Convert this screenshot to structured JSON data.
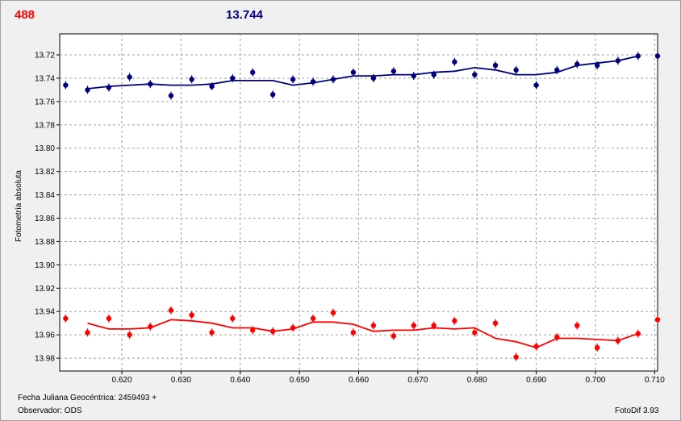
{
  "header": {
    "star_value_left": "488",
    "star_value_mid": "13.744"
  },
  "footer": {
    "jd_label": "Fecha Juliana Geocéntrica: 2459493 +",
    "observer_label": "Observador: ODS",
    "software": "FotoDif 3.93"
  },
  "colors": {
    "series1": "#00007f",
    "series2": "#ff0000",
    "grid": "#a0a0a0"
  },
  "chart_data": {
    "type": "scatter",
    "title": "",
    "xlabel": "Fecha Juliana Geocéntrica: 2459493 +",
    "ylabel": "Fotometría absoluta",
    "xlim": [
      0.6095,
      0.7105
    ],
    "ylim": [
      13.991,
      13.702
    ],
    "y_inverted": true,
    "grid": true,
    "x_ticks": [
      "0.620",
      "0.630",
      "0.640",
      "0.650",
      "0.660",
      "0.670",
      "0.680",
      "0.690",
      "0.700",
      "0.710"
    ],
    "y_ticks": [
      "13.72",
      "13.74",
      "13.76",
      "13.78",
      "13.80",
      "13.82",
      "13.84",
      "13.86",
      "13.88",
      "13.90",
      "13.92",
      "13.94",
      "13.96",
      "13.98"
    ],
    "series": [
      {
        "points": [
          [
            0.6105,
            13.746
          ],
          [
            0.6142,
            13.75
          ],
          [
            0.6178,
            13.748
          ],
          [
            0.6213,
            13.739
          ],
          [
            0.6248,
            13.745
          ],
          [
            0.6283,
            13.755
          ],
          [
            0.6318,
            13.741
          ],
          [
            0.6352,
            13.747
          ],
          [
            0.6387,
            13.74
          ],
          [
            0.6421,
            13.735
          ],
          [
            0.6455,
            13.754
          ],
          [
            0.6489,
            13.741
          ],
          [
            0.6523,
            13.743
          ],
          [
            0.6557,
            13.741
          ],
          [
            0.6591,
            13.735
          ],
          [
            0.6625,
            13.74
          ],
          [
            0.6659,
            13.734
          ],
          [
            0.6693,
            13.738
          ],
          [
            0.6727,
            13.737
          ],
          [
            0.6762,
            13.726
          ],
          [
            0.6796,
            13.737
          ],
          [
            0.6831,
            13.729
          ],
          [
            0.6866,
            13.733
          ],
          [
            0.69,
            13.746
          ],
          [
            0.6935,
            13.733
          ],
          [
            0.6969,
            13.728
          ],
          [
            0.7003,
            13.729
          ],
          [
            0.7038,
            13.725
          ],
          [
            0.7072,
            13.721
          ],
          [
            0.7105,
            13.721
          ]
        ],
        "trend": [
          [
            0.6142,
            13.749
          ],
          [
            0.6178,
            13.747
          ],
          [
            0.6213,
            13.746
          ],
          [
            0.6248,
            13.745
          ],
          [
            0.6283,
            13.746
          ],
          [
            0.6318,
            13.746
          ],
          [
            0.6352,
            13.745
          ],
          [
            0.6387,
            13.742
          ],
          [
            0.6421,
            13.742
          ],
          [
            0.6455,
            13.742
          ],
          [
            0.6489,
            13.746
          ],
          [
            0.6523,
            13.744
          ],
          [
            0.6557,
            13.741
          ],
          [
            0.6591,
            13.738
          ],
          [
            0.6625,
            13.738
          ],
          [
            0.6659,
            13.737
          ],
          [
            0.6693,
            13.737
          ],
          [
            0.6727,
            13.735
          ],
          [
            0.6762,
            13.734
          ],
          [
            0.6796,
            13.731
          ],
          [
            0.6831,
            13.733
          ],
          [
            0.6866,
            13.737
          ],
          [
            0.69,
            13.737
          ],
          [
            0.6935,
            13.735
          ],
          [
            0.6969,
            13.729
          ],
          [
            0.7003,
            13.727
          ],
          [
            0.7038,
            13.725
          ],
          [
            0.7072,
            13.721
          ]
        ]
      },
      {
        "points": [
          [
            0.6105,
            13.946
          ],
          [
            0.6142,
            13.958
          ],
          [
            0.6178,
            13.946
          ],
          [
            0.6213,
            13.96
          ],
          [
            0.6248,
            13.953
          ],
          [
            0.6283,
            13.939
          ],
          [
            0.6318,
            13.943
          ],
          [
            0.6352,
            13.958
          ],
          [
            0.6387,
            13.946
          ],
          [
            0.6421,
            13.956
          ],
          [
            0.6455,
            13.957
          ],
          [
            0.6489,
            13.954
          ],
          [
            0.6523,
            13.946
          ],
          [
            0.6557,
            13.941
          ],
          [
            0.6591,
            13.958
          ],
          [
            0.6625,
            13.952
          ],
          [
            0.6659,
            13.961
          ],
          [
            0.6693,
            13.952
          ],
          [
            0.6727,
            13.952
          ],
          [
            0.6762,
            13.948
          ],
          [
            0.6796,
            13.958
          ],
          [
            0.6831,
            13.95
          ],
          [
            0.6866,
            13.979
          ],
          [
            0.69,
            13.97
          ],
          [
            0.6935,
            13.962
          ],
          [
            0.6969,
            13.952
          ],
          [
            0.7003,
            13.971
          ],
          [
            0.7038,
            13.965
          ],
          [
            0.7072,
            13.959
          ],
          [
            0.7105,
            13.947
          ]
        ],
        "trend": [
          [
            0.6142,
            13.95
          ],
          [
            0.6178,
            13.955
          ],
          [
            0.6213,
            13.955
          ],
          [
            0.6248,
            13.954
          ],
          [
            0.6283,
            13.947
          ],
          [
            0.6318,
            13.948
          ],
          [
            0.6352,
            13.95
          ],
          [
            0.6387,
            13.954
          ],
          [
            0.6421,
            13.954
          ],
          [
            0.6455,
            13.957
          ],
          [
            0.6489,
            13.955
          ],
          [
            0.6523,
            13.949
          ],
          [
            0.6557,
            13.949
          ],
          [
            0.6591,
            13.951
          ],
          [
            0.6625,
            13.957
          ],
          [
            0.6659,
            13.956
          ],
          [
            0.6693,
            13.956
          ],
          [
            0.6727,
            13.954
          ],
          [
            0.6762,
            13.955
          ],
          [
            0.6796,
            13.954
          ],
          [
            0.6831,
            13.963
          ],
          [
            0.6866,
            13.966
          ],
          [
            0.69,
            13.971
          ],
          [
            0.6935,
            13.963
          ],
          [
            0.6969,
            13.963
          ],
          [
            0.7003,
            13.964
          ],
          [
            0.7038,
            13.965
          ],
          [
            0.7072,
            13.959
          ]
        ]
      }
    ]
  }
}
